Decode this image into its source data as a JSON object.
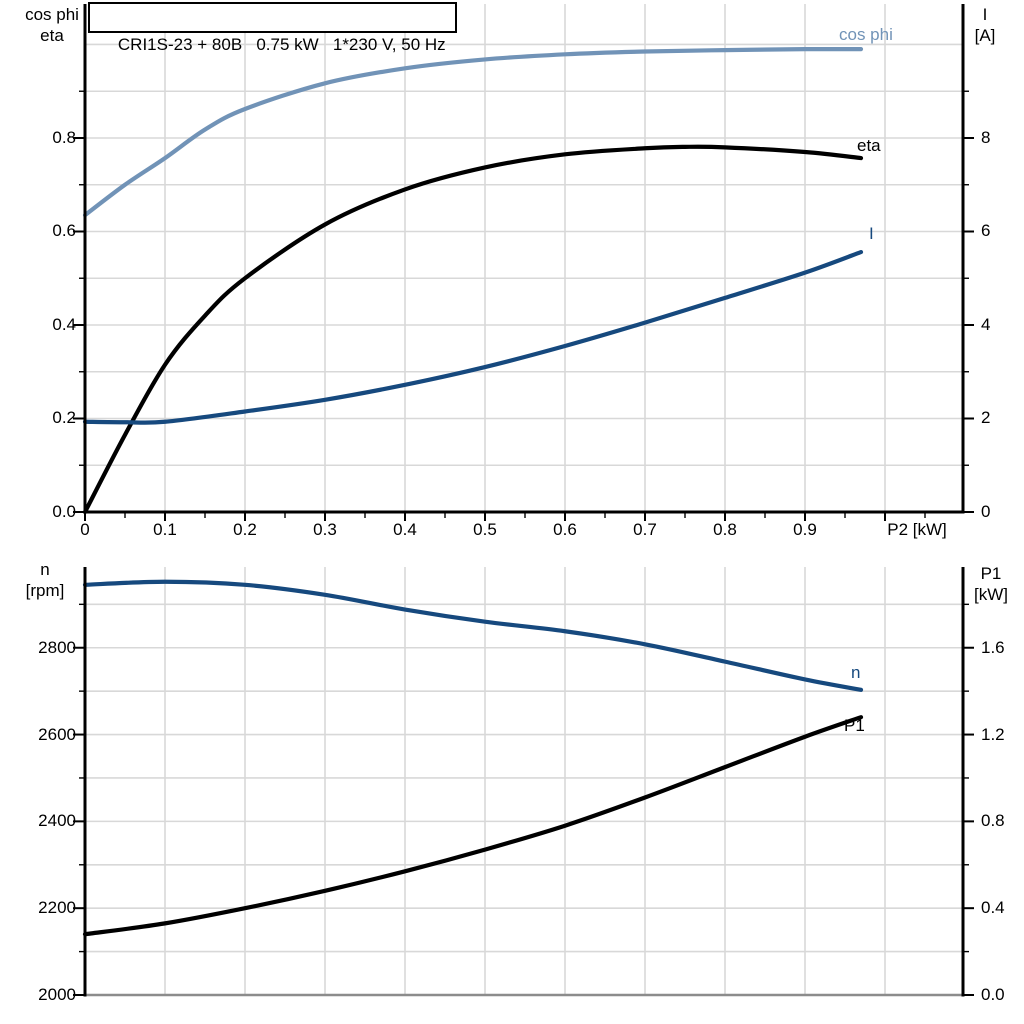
{
  "title": "CRI1S-23 + 80B   0.75 kW   1*230 V, 50 Hz",
  "colors": {
    "background": "#ffffff",
    "grid": "#d8d8d8",
    "axis": "#000000",
    "bottom_border_gray": "#8c8c8c",
    "light_blue": "#7193b7",
    "dark_blue": "#16497e",
    "black": "#000000"
  },
  "chart_data": [
    {
      "type": "line",
      "title": "CRI1S-23 + 80B   0.75 kW   1*230 V, 50 Hz",
      "xlabel": "P2 [kW]",
      "x_range": [
        0,
        1.0975
      ],
      "x_grid": [
        0.1,
        0.2,
        0.3,
        0.4,
        0.5,
        0.6,
        0.7,
        0.8,
        0.9,
        1.0
      ],
      "x_ticks": {
        "values": [
          0,
          0.1,
          0.2,
          0.3,
          0.4,
          0.5,
          0.6,
          0.7,
          0.8,
          0.9
        ],
        "labels": [
          "0",
          "0.1",
          "0.2",
          "0.3",
          "0.4",
          "0.5",
          "0.6",
          "0.7",
          "0.8",
          "0.9"
        ],
        "major_unlabeled": [
          1.0
        ],
        "minor": [
          0.05,
          0.15,
          0.25,
          0.35,
          0.45,
          0.55,
          0.65,
          0.75,
          0.85,
          0.95,
          1.05
        ]
      },
      "left_axis": {
        "header1": "cos phi",
        "header2": "eta",
        "range": [
          0,
          1.0866
        ],
        "grid": [
          0.1,
          0.2,
          0.3,
          0.4,
          0.5,
          0.6,
          0.7,
          0.8,
          0.9,
          1.0
        ],
        "tick_values": [
          0,
          0.2,
          0.4,
          0.6,
          0.8
        ],
        "tick_labels": [
          "0.0",
          "0.2",
          "0.4",
          "0.6",
          "0.8"
        ],
        "minor": [
          0.1,
          0.3,
          0.5,
          0.7,
          0.9
        ]
      },
      "right_axis": {
        "header1": "I",
        "header2": "[A]",
        "range": [
          0,
          10.866
        ],
        "tick_values": [
          0,
          2,
          4,
          6,
          8
        ],
        "tick_labels": [
          "0",
          "2",
          "4",
          "6",
          "8"
        ],
        "minor": [
          1,
          3,
          5,
          7,
          9
        ]
      },
      "has_black_x_axis": true,
      "series": [
        {
          "name": "cos phi",
          "label": "cos phi",
          "axis": "left",
          "color": "#7193b7",
          "x": [
            0,
            0.05,
            0.1,
            0.15,
            0.2,
            0.3,
            0.4,
            0.5,
            0.6,
            0.7,
            0.8,
            0.9,
            0.97
          ],
          "values": [
            0.635,
            0.7,
            0.757,
            0.818,
            0.862,
            0.917,
            0.949,
            0.968,
            0.979,
            0.985,
            0.988,
            0.99,
            0.99
          ]
        },
        {
          "name": "eta",
          "label": "eta",
          "axis": "left",
          "color": "#000000",
          "x": [
            0,
            0.05,
            0.1,
            0.15,
            0.2,
            0.3,
            0.4,
            0.5,
            0.6,
            0.7,
            0.75,
            0.8,
            0.9,
            0.97
          ],
          "values": [
            0.0,
            0.165,
            0.315,
            0.42,
            0.5,
            0.615,
            0.69,
            0.737,
            0.765,
            0.778,
            0.781,
            0.78,
            0.77,
            0.757
          ]
        },
        {
          "name": "I",
          "label": "I",
          "axis": "right",
          "color": "#16497e",
          "x": [
            0,
            0.05,
            0.1,
            0.2,
            0.3,
            0.4,
            0.5,
            0.6,
            0.7,
            0.8,
            0.9,
            0.97
          ],
          "values": [
            1.93,
            1.92,
            1.93,
            2.15,
            2.4,
            2.72,
            3.1,
            3.55,
            4.05,
            4.58,
            5.12,
            5.56
          ]
        }
      ]
    },
    {
      "type": "line",
      "xlabel": "",
      "x_range": [
        0,
        1.0975
      ],
      "x_grid": [
        0.1,
        0.2,
        0.3,
        0.4,
        0.5,
        0.6,
        0.7,
        0.8,
        0.9,
        1.0
      ],
      "left_axis": {
        "header1": "n",
        "header2": "[rpm]",
        "range": [
          2000,
          2986
        ],
        "grid": [
          2100,
          2200,
          2300,
          2400,
          2500,
          2600,
          2700,
          2800,
          2900
        ],
        "tick_values": [
          2000,
          2200,
          2400,
          2600,
          2800
        ],
        "tick_labels": [
          "2000",
          "2200",
          "2400",
          "2600",
          "2800"
        ],
        "minor": [
          2100,
          2300,
          2500,
          2700,
          2900
        ]
      },
      "right_axis": {
        "header1": "P1",
        "header2": "[kW]",
        "range": [
          0,
          1.972
        ],
        "tick_values": [
          0,
          0.4,
          0.8,
          1.2,
          1.6
        ],
        "tick_labels": [
          "0.0",
          "0.4",
          "0.8",
          "1.2",
          "1.6"
        ],
        "minor": [
          0.2,
          0.6,
          1.0,
          1.4,
          1.8
        ]
      },
      "has_gray_bottom_border": true,
      "series": [
        {
          "name": "n",
          "label": "n",
          "axis": "left",
          "color": "#16497e",
          "x": [
            0,
            0.1,
            0.2,
            0.3,
            0.4,
            0.5,
            0.6,
            0.7,
            0.8,
            0.9,
            0.97
          ],
          "values": [
            2945,
            2952,
            2945,
            2922,
            2888,
            2860,
            2838,
            2808,
            2768,
            2727,
            2703
          ]
        },
        {
          "name": "P1",
          "label": "P1",
          "axis": "right",
          "color": "#000000",
          "x": [
            0,
            0.1,
            0.2,
            0.3,
            0.4,
            0.5,
            0.6,
            0.7,
            0.8,
            0.9,
            0.97
          ],
          "values": [
            0.28,
            0.33,
            0.4,
            0.48,
            0.57,
            0.67,
            0.78,
            0.91,
            1.05,
            1.19,
            1.28
          ]
        }
      ]
    }
  ]
}
